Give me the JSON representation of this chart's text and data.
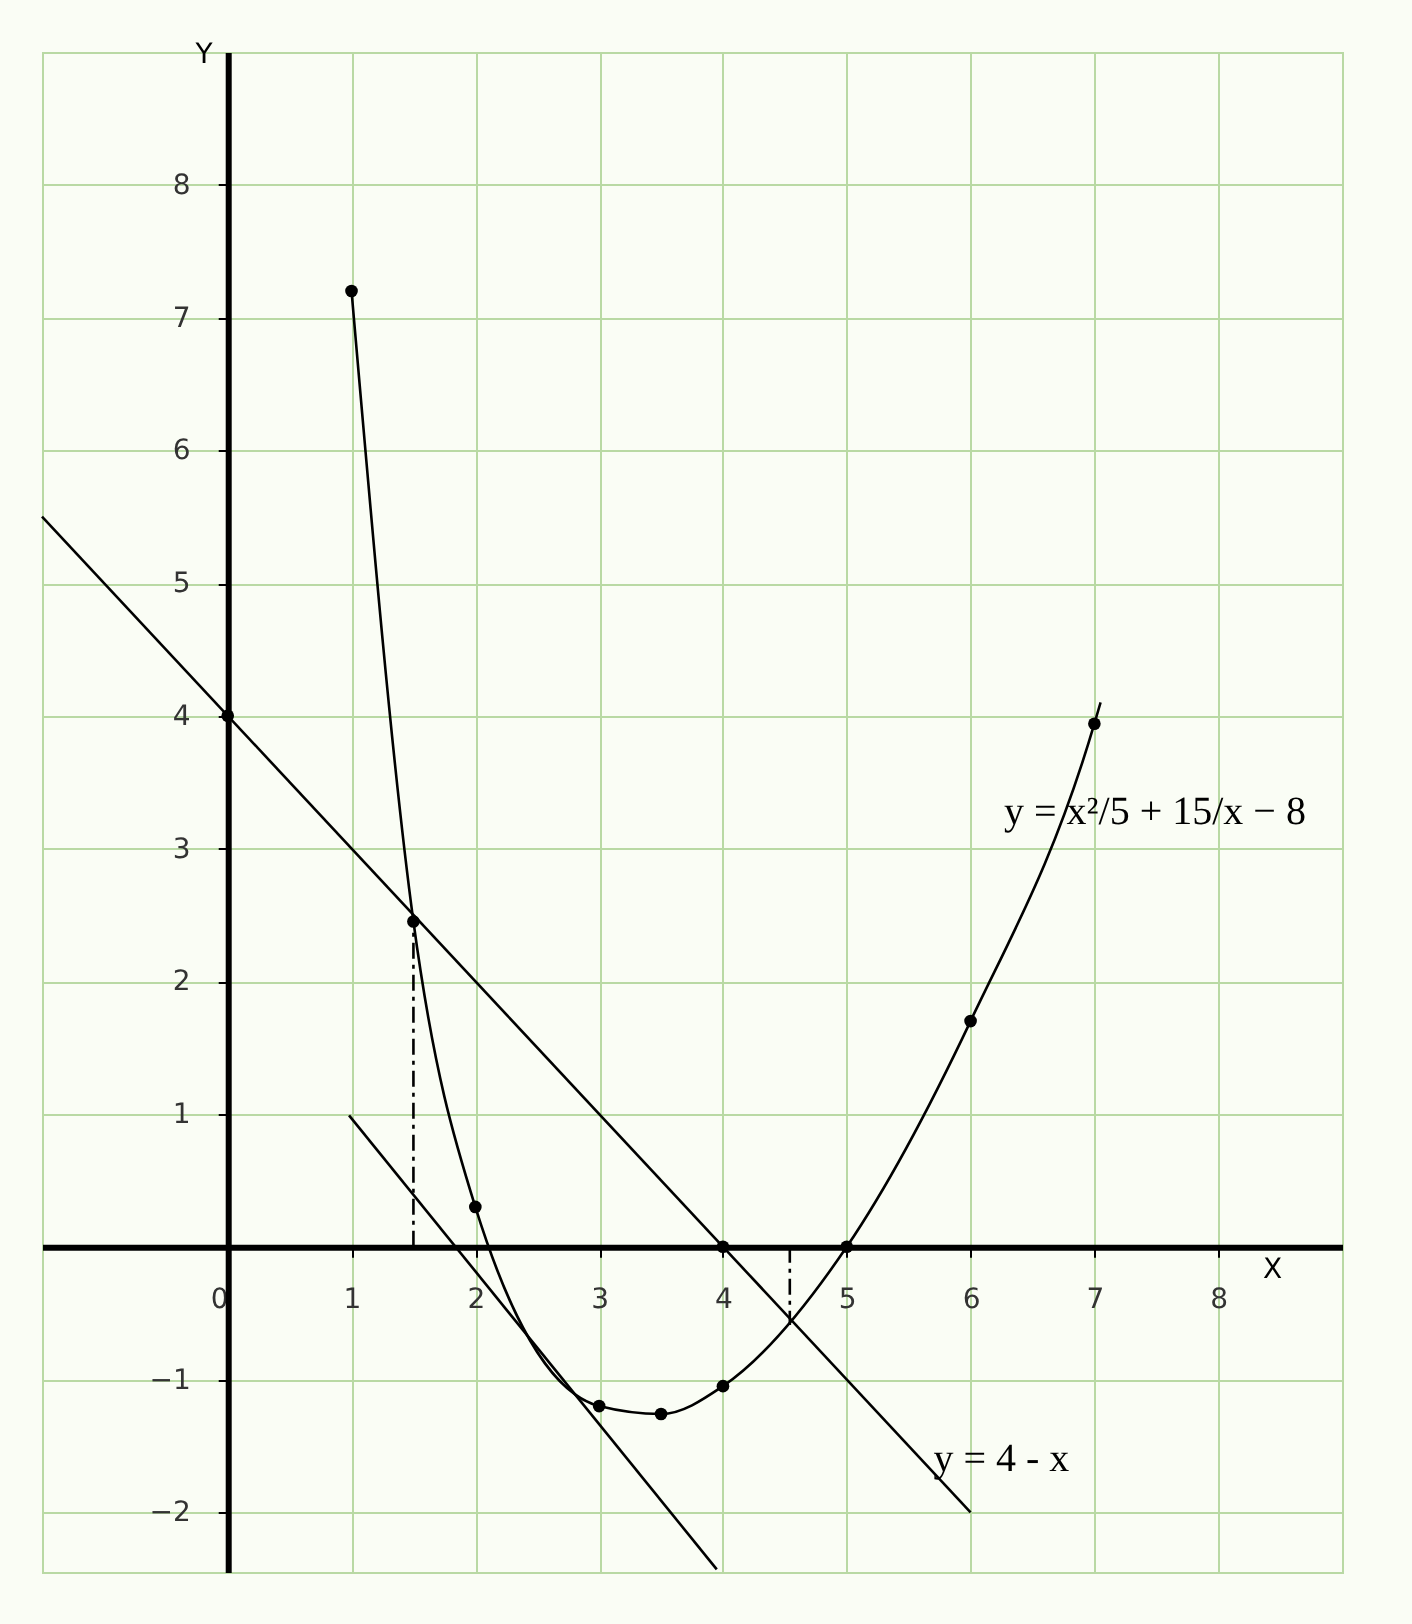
{
  "chart_data": {
    "type": "line",
    "xlabel": "X",
    "ylabel": "Y",
    "xlim": [
      -1.5,
      9
    ],
    "ylim": [
      -2.45,
      9
    ],
    "xticks": [
      0,
      1,
      2,
      3,
      4,
      5,
      6,
      7,
      8
    ],
    "yticks": [
      -2,
      -1,
      1,
      2,
      3,
      4,
      5,
      6,
      7,
      8
    ],
    "grid": true,
    "series": [
      {
        "color": "#000000",
        "x": [
          1,
          1.5,
          2,
          3,
          3.5,
          4,
          5,
          6,
          7,
          7.05
        ],
        "values": [
          7.2,
          2.45,
          0.3,
          -1.2,
          -1.26,
          -1.05,
          0,
          1.7,
          3.94,
          4.1
        ]
      },
      {
        "color": "#000000",
        "x": [
          -1.5,
          6
        ],
        "values": [
          5.5,
          -2
        ]
      },
      {
        "color": "#000000",
        "x": [
          0.98,
          3.95
        ],
        "values": [
          0.99,
          -2.43
        ]
      },
      {
        "color": "#000000",
        "line_style": "dashed",
        "x": [
          1.5,
          1.5
        ],
        "values": [
          0,
          2.45
        ]
      },
      {
        "color": "#000000",
        "line_style": "dashed",
        "x": [
          4.54,
          4.54
        ],
        "values": [
          0,
          -0.59
        ]
      },
      {
        "type": "scatter",
        "color": "#000000",
        "x": [
          0,
          1,
          1.5,
          2,
          3,
          3.5,
          4,
          4,
          5,
          6,
          7
        ],
        "values": [
          4,
          7.2,
          2.45,
          0.3,
          -1.2,
          -1.26,
          -1.05,
          0,
          0,
          1.7,
          3.94
        ]
      }
    ],
    "annotations": [
      "y = x²/5 + 15/x − 8",
      {
        "text": "y = 4 - x",
        "x": 5.7,
        "y": -1.6
      }
    ]
  }
}
